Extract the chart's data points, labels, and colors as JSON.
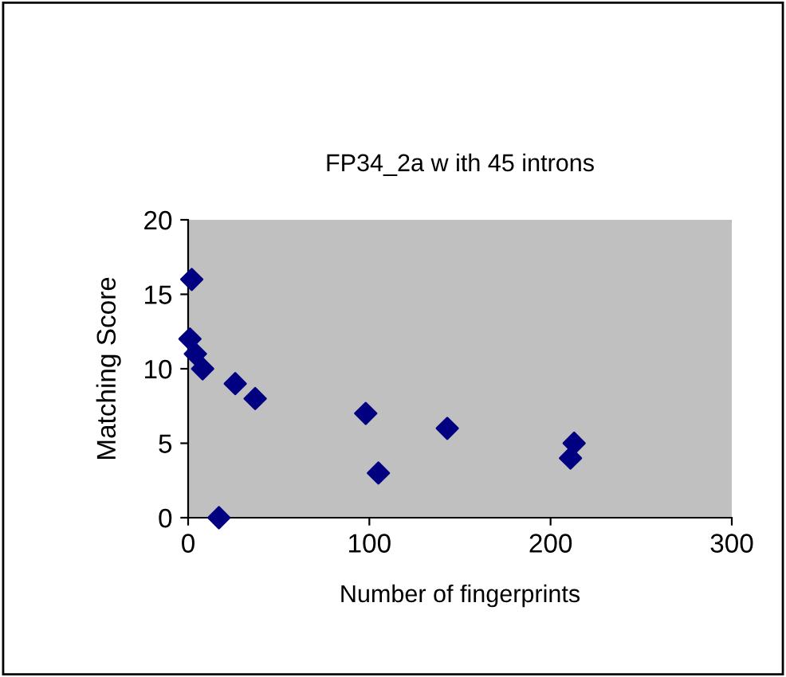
{
  "chart_data": {
    "type": "scatter",
    "title": "FP34_2a w ith 45 introns",
    "xlabel": "Number of fingerprints",
    "ylabel": "Matching Score",
    "series": [
      {
        "color": "#000080",
        "x": [
          2,
          1,
          4,
          8,
          26,
          37,
          98,
          105,
          143,
          211,
          213,
          17
        ],
        "values": [
          16,
          12,
          11,
          10,
          9,
          8,
          7,
          3,
          6,
          4,
          5,
          0
        ]
      }
    ],
    "xlim": [
      0,
      300
    ],
    "xticks": [
      0,
      100,
      200,
      300
    ],
    "ylim": [
      0,
      20
    ],
    "yticks": [
      0,
      5,
      10,
      15,
      20
    ],
    "grid": false,
    "legend": false,
    "marker": "diamond"
  }
}
